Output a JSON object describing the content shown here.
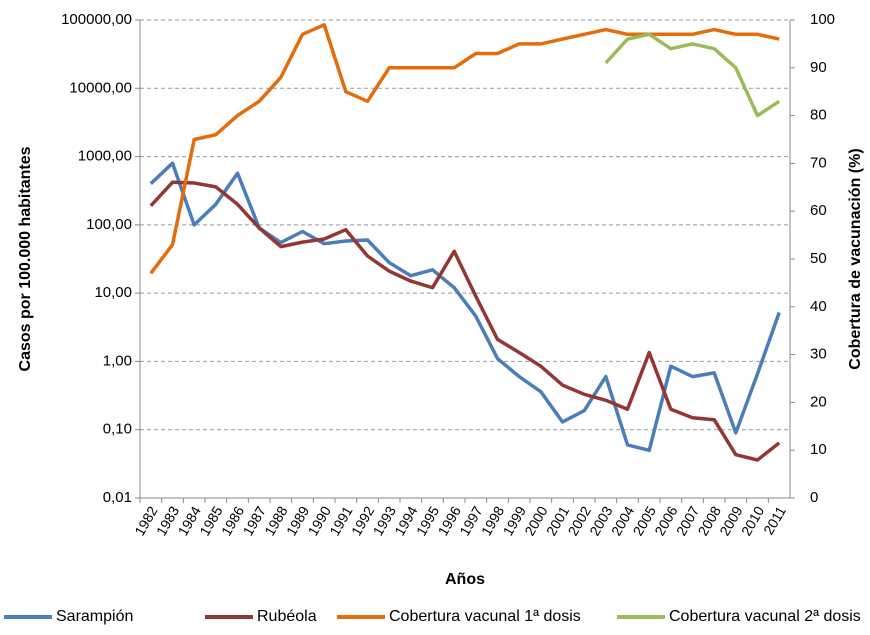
{
  "chart_data": {
    "type": "line",
    "x_label": "Años",
    "y_label": "Casos por 100.000 habitantes",
    "y2_label": "Cobertura de vacunación (%)",
    "categories": [
      "1982",
      "1983",
      "1984",
      "1985",
      "1986",
      "1987",
      "1988",
      "1989",
      "1990",
      "1991",
      "1992",
      "1993",
      "1994",
      "1995",
      "1996",
      "1997",
      "1998",
      "1999",
      "2000",
      "2001",
      "2002",
      "2003",
      "2004",
      "2005",
      "2006",
      "2007",
      "2008",
      "2009",
      "2010",
      "2011"
    ],
    "y_log": true,
    "ylim": [
      0.01,
      100000
    ],
    "yticks": [
      {
        "value": 0.01,
        "label": "0,01"
      },
      {
        "value": 0.1,
        "label": "0,10"
      },
      {
        "value": 1,
        "label": "1,00"
      },
      {
        "value": 10,
        "label": "10,00"
      },
      {
        "value": 100,
        "label": "100,00"
      },
      {
        "value": 1000,
        "label": "1000,00"
      },
      {
        "value": 10000,
        "label": "10000,00"
      },
      {
        "value": 100000,
        "label": "100000,00"
      }
    ],
    "y2lim": [
      0,
      100
    ],
    "y2ticks": [
      0,
      10,
      20,
      30,
      40,
      50,
      60,
      70,
      80,
      90,
      100
    ],
    "grid": true,
    "legend": "bottom",
    "series": [
      {
        "name": "Sarampión",
        "color": "#4a7ebb",
        "values": [
          400,
          800,
          100,
          200,
          570,
          90,
          55,
          80,
          53,
          58,
          60,
          28,
          18,
          22,
          12,
          4.6,
          1.1,
          0.6,
          0.36,
          0.13,
          0.19,
          0.6,
          0.06,
          0.05,
          0.85,
          0.6,
          0.68,
          0.09,
          0.66,
          5.2
        ]
      },
      {
        "name": "Rubéola",
        "color": "#943634",
        "values": [
          190,
          420,
          410,
          360,
          200,
          90,
          48,
          56,
          62,
          85,
          35,
          21,
          15,
          12,
          41,
          9,
          2.1,
          1.35,
          0.85,
          0.45,
          0.33,
          0.27,
          0.2,
          1.35,
          0.2,
          0.15,
          0.14,
          0.043,
          0.036,
          0.064
        ]
      },
      {
        "name": "Cobertura vacunal 1ª dosis",
        "color": "#e46c0a",
        "axis": "y2",
        "values": [
          47,
          53,
          75,
          76,
          80,
          83,
          88,
          97,
          99,
          85,
          83,
          90,
          90,
          90,
          90,
          93,
          93,
          95,
          95,
          96,
          97,
          98,
          97,
          97,
          97,
          97,
          98,
          97,
          97,
          96
        ]
      },
      {
        "name": "Cobertura vacunal 2ª dosis",
        "color": "#9bbb59",
        "axis": "y2",
        "values": [
          null,
          null,
          null,
          null,
          null,
          null,
          null,
          null,
          null,
          null,
          null,
          null,
          null,
          null,
          null,
          null,
          null,
          null,
          null,
          null,
          null,
          91,
          96,
          97,
          94,
          95,
          94,
          90,
          80,
          83
        ]
      }
    ]
  }
}
